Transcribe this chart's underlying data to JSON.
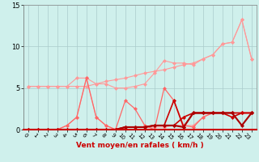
{
  "xlabel": "Vent moyen/en rafales ( km/h )",
  "xlim": [
    -0.5,
    23.5
  ],
  "ylim": [
    0,
    15
  ],
  "yticks": [
    0,
    5,
    10,
    15
  ],
  "xticks": [
    0,
    1,
    2,
    3,
    4,
    5,
    6,
    7,
    8,
    9,
    10,
    11,
    12,
    13,
    14,
    15,
    16,
    17,
    18,
    19,
    20,
    21,
    22,
    23
  ],
  "bg_color": "#cff0ec",
  "grid_color": "#aacccc",
  "lines": [
    {
      "x": [
        0,
        1,
        2,
        3,
        4,
        5,
        6,
        7,
        8,
        9,
        10,
        11,
        12,
        13,
        14,
        15,
        16,
        17,
        18,
        19,
        20,
        21,
        22,
        23
      ],
      "y": [
        5.2,
        5.2,
        5.2,
        5.2,
        5.2,
        5.2,
        5.2,
        5.5,
        5.8,
        6.0,
        6.2,
        6.5,
        6.8,
        7.0,
        7.2,
        7.5,
        7.8,
        8.0,
        8.5,
        9.0,
        10.3,
        10.5,
        13.2,
        8.5
      ],
      "color": "#ff9999",
      "lw": 0.8,
      "ms": 2.5
    },
    {
      "x": [
        0,
        1,
        2,
        3,
        4,
        5,
        6,
        7,
        8,
        9,
        10,
        11,
        12,
        13,
        14,
        15,
        16,
        17,
        18,
        19,
        20,
        21,
        22,
        23
      ],
      "y": [
        5.2,
        5.2,
        5.2,
        5.2,
        5.2,
        6.2,
        6.2,
        5.5,
        5.5,
        5.0,
        5.0,
        5.2,
        5.5,
        6.8,
        8.3,
        8.0,
        8.0,
        7.8,
        8.5,
        9.0,
        10.3,
        10.5,
        13.2,
        8.5
      ],
      "color": "#ff9999",
      "lw": 0.8,
      "ms": 2.5
    },
    {
      "x": [
        0,
        1,
        2,
        3,
        4,
        5,
        6,
        7,
        8,
        9,
        10,
        11,
        12,
        13,
        14,
        15,
        16,
        17,
        18,
        19,
        20,
        21,
        22,
        23
      ],
      "y": [
        0.0,
        0.0,
        0.0,
        0.0,
        0.5,
        1.5,
        6.2,
        1.5,
        0.5,
        0.0,
        0.3,
        0.3,
        0.3,
        0.3,
        0.3,
        0.5,
        0.5,
        0.5,
        1.5,
        2.0,
        2.0,
        2.0,
        2.0,
        2.0
      ],
      "color": "#ff9999",
      "lw": 0.8,
      "ms": 2.5
    },
    {
      "x": [
        0,
        1,
        2,
        3,
        4,
        5,
        6,
        7,
        8,
        9,
        10,
        11,
        12,
        13,
        14,
        15,
        16,
        17,
        18,
        19,
        20,
        21,
        22,
        23
      ],
      "y": [
        0.0,
        0.0,
        0.0,
        0.0,
        0.5,
        1.5,
        6.2,
        1.5,
        0.5,
        0.0,
        3.5,
        2.5,
        0.5,
        0.0,
        5.0,
        3.5,
        0.5,
        0.3,
        1.5,
        2.0,
        2.0,
        2.0,
        2.0,
        2.0
      ],
      "color": "#ff6666",
      "lw": 0.9,
      "ms": 2.5
    },
    {
      "x": [
        0,
        1,
        2,
        3,
        4,
        5,
        6,
        7,
        8,
        9,
        10,
        11,
        12,
        13,
        14,
        15,
        16,
        17,
        18,
        19,
        20,
        21,
        22,
        23
      ],
      "y": [
        0.0,
        0.0,
        0.0,
        0.0,
        0.0,
        0.0,
        0.0,
        0.0,
        0.0,
        0.0,
        0.3,
        0.3,
        0.3,
        0.5,
        0.5,
        0.5,
        1.5,
        2.0,
        2.0,
        2.0,
        2.0,
        2.0,
        2.0,
        2.0
      ],
      "color": "#cc0000",
      "lw": 1.2,
      "ms": 2.5
    },
    {
      "x": [
        0,
        1,
        2,
        3,
        4,
        5,
        6,
        7,
        8,
        9,
        10,
        11,
        12,
        13,
        14,
        15,
        16,
        17,
        18,
        19,
        20,
        21,
        22,
        23
      ],
      "y": [
        0.0,
        0.0,
        0.0,
        0.0,
        0.0,
        0.0,
        0.0,
        0.0,
        0.0,
        0.0,
        0.3,
        0.3,
        0.3,
        0.5,
        0.5,
        3.5,
        0.3,
        2.0,
        2.0,
        2.0,
        2.0,
        1.5,
        2.0,
        2.0
      ],
      "color": "#cc0000",
      "lw": 1.2,
      "ms": 2.5
    },
    {
      "x": [
        0,
        1,
        2,
        3,
        4,
        5,
        6,
        7,
        8,
        9,
        10,
        11,
        12,
        13,
        14,
        15,
        16,
        17,
        18,
        19,
        20,
        21,
        22,
        23
      ],
      "y": [
        0.0,
        0.0,
        0.0,
        0.0,
        0.0,
        0.0,
        0.0,
        0.0,
        0.0,
        0.0,
        0.3,
        0.3,
        0.3,
        0.5,
        0.5,
        0.5,
        0.3,
        2.0,
        2.0,
        2.0,
        2.0,
        2.0,
        0.5,
        2.0
      ],
      "color": "#aa0000",
      "lw": 1.5,
      "ms": 2.5
    }
  ]
}
